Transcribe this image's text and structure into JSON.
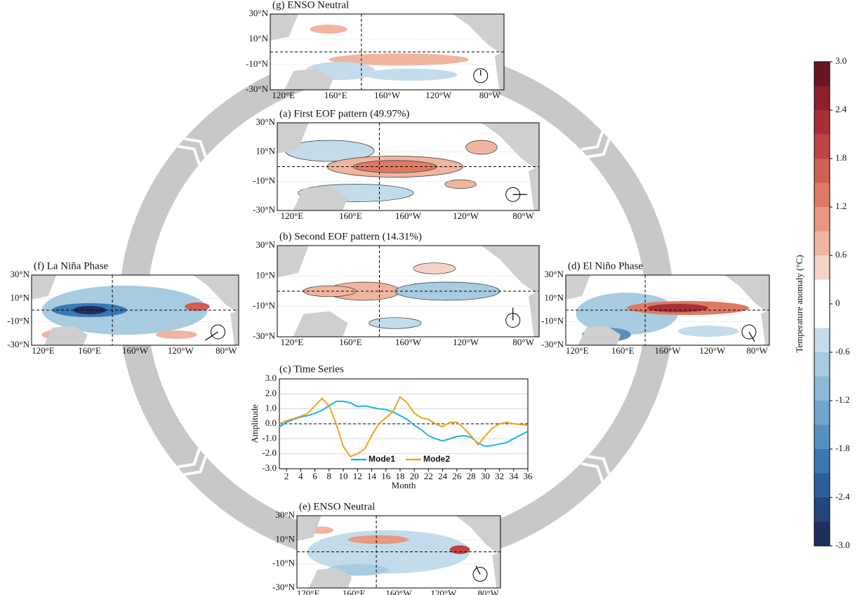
{
  "map_axes": {
    "lat_labels": [
      "30°N",
      "10°N",
      "-10°N",
      "-30°N"
    ],
    "lon_labels": [
      "120°E",
      "160°E",
      "160°W",
      "120°W",
      "80°W"
    ]
  },
  "maps": [
    {
      "title": "(g) ENSO Neutral"
    },
    {
      "title": "(a) First EOF pattern (49.97%)"
    },
    {
      "title": "(b) Second EOF pattern (14.31%)"
    },
    {
      "title": "(f) La Niña Phase"
    },
    {
      "title": "(d) El Niño Phase"
    },
    {
      "title": "(e) ENSO Neutral"
    }
  ],
  "chart_data": {
    "type": "line",
    "title": "(c) Time Series",
    "x_label": "Month",
    "y_label": "Amplitude",
    "x": [
      1,
      2,
      3,
      4,
      5,
      6,
      7,
      8,
      9,
      10,
      11,
      12,
      13,
      14,
      15,
      16,
      17,
      18,
      19,
      20,
      21,
      22,
      23,
      24,
      25,
      26,
      27,
      28,
      29,
      30,
      31,
      32,
      33,
      34,
      35,
      36
    ],
    "series": [
      {
        "name": "Mode1",
        "color": "#19b2ef",
        "values": [
          -0.2,
          0.1,
          0.3,
          0.45,
          0.55,
          0.7,
          0.9,
          1.2,
          1.5,
          1.5,
          1.4,
          1.15,
          1.2,
          1.1,
          1.0,
          0.95,
          0.8,
          0.55,
          0.3,
          -0.1,
          -0.4,
          -0.8,
          -1.0,
          -1.15,
          -1.0,
          -0.85,
          -0.8,
          -0.9,
          -1.3,
          -1.5,
          -1.45,
          -1.35,
          -1.25,
          -1.0,
          -0.75,
          -0.5
        ]
      },
      {
        "name": "Mode2",
        "color": "#f5a01a",
        "values": [
          0.0,
          0.2,
          0.35,
          0.5,
          0.7,
          1.2,
          1.7,
          1.2,
          0.0,
          -1.5,
          -2.2,
          -2.0,
          -1.7,
          -0.8,
          0.0,
          0.4,
          0.8,
          1.8,
          1.4,
          0.7,
          0.4,
          0.3,
          0.0,
          -0.2,
          0.1,
          0.1,
          -0.3,
          -0.8,
          -1.4,
          -0.8,
          -0.3,
          0.0,
          0.1,
          0.0,
          -0.05,
          -0.1
        ]
      }
    ],
    "xlim": [
      1,
      36
    ],
    "xticks": [
      2,
      4,
      6,
      8,
      10,
      12,
      14,
      16,
      18,
      20,
      22,
      24,
      26,
      28,
      30,
      32,
      34,
      36
    ],
    "ylim": [
      -3,
      3
    ],
    "yticks": [
      {
        "value": 3,
        "label": "3.0"
      },
      {
        "value": 2,
        "label": "2.0"
      },
      {
        "value": 1,
        "label": "1.0"
      },
      {
        "value": 0,
        "label": "0.0"
      },
      {
        "value": -1,
        "label": "-1.0"
      },
      {
        "value": -2,
        "label": "-2.0"
      },
      {
        "value": -3,
        "label": "-3.0"
      }
    ],
    "grid": true,
    "legend": "bottom"
  },
  "colorbar": {
    "label": "Temperature anomaly (°C)",
    "lim": [
      -3,
      3
    ],
    "ticks": [
      {
        "value": 3,
        "label": "3.0"
      },
      2.4,
      1.8,
      1.2,
      0.6,
      0,
      -0.6,
      -1.2,
      -1.8,
      -2.4,
      {
        "value": -3,
        "label": "-3.0"
      }
    ],
    "colors": [
      "#6b1522",
      "#8e1f2c",
      "#a92f37",
      "#c14444",
      "#d15f51",
      "#de7a64",
      "#e9977e",
      "#f0b5a0",
      "#f6d3c6",
      "#ffffff",
      "#ffffff",
      "#c3dceb",
      "#a7cbe0",
      "#8cbad6",
      "#6fa6cc",
      "#5491c1",
      "#3a78b0",
      "#2a5f9c",
      "#23467f",
      "#1f2f5c"
    ]
  }
}
